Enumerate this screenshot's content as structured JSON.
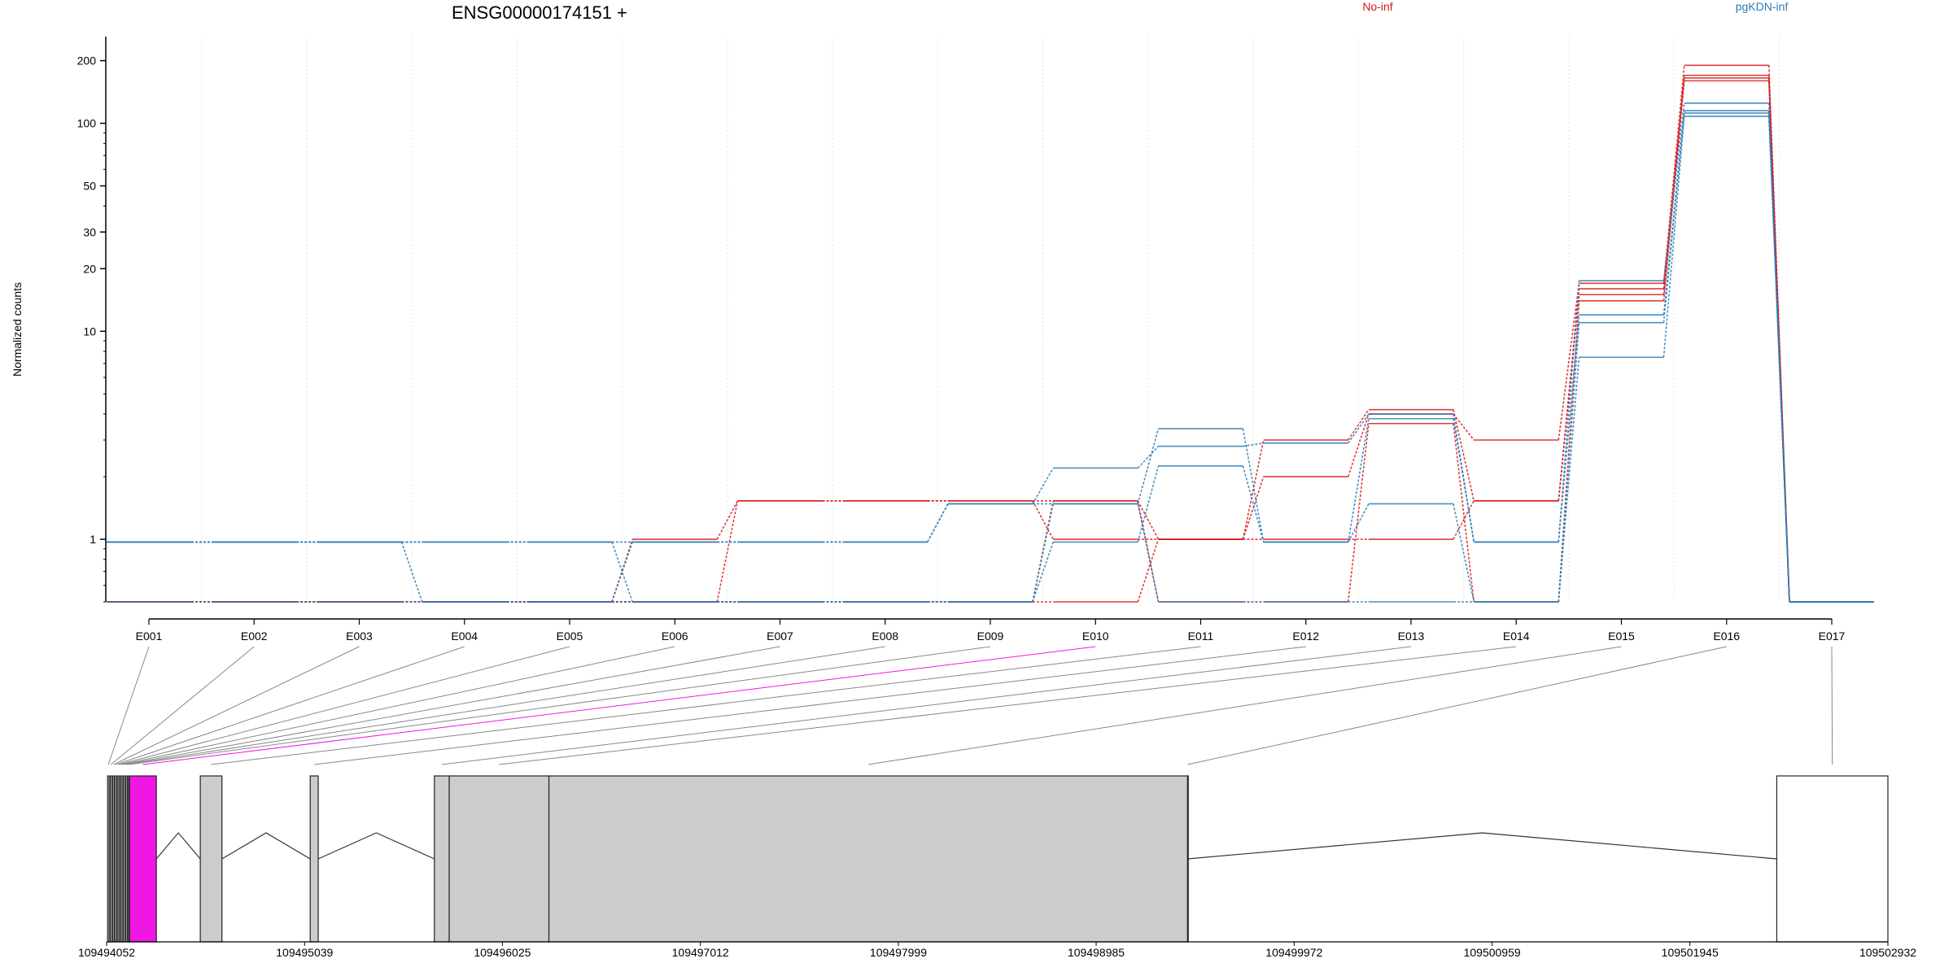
{
  "header": {
    "gene_title": "ENSG00000174151 +"
  },
  "legend": [
    {
      "label": "No-inf",
      "color": "#d7191c"
    },
    {
      "label": "pgKDN-inf",
      "color": "#2c7bb6"
    }
  ],
  "colors": {
    "no_inf": "#d7191c",
    "pgkdn_inf": "#2c7bb6",
    "highlight_exon": "#f016e4",
    "exon_fill": "#cccccc",
    "connector": "#888888"
  },
  "chart_data": [
    {
      "type": "line",
      "title": "ENSG00000174151 +",
      "xlabel": "",
      "ylabel": "Normalized counts",
      "y_scale": "log",
      "ylim": [
        0.5,
        220
      ],
      "y_ticks": [
        1,
        10,
        20,
        30,
        50,
        100,
        200
      ],
      "grid": "vertical dotted",
      "categories": [
        "E001",
        "E002",
        "E003",
        "E004",
        "E005",
        "E006",
        "E007",
        "E008",
        "E009",
        "E010",
        "E011",
        "E012",
        "E013",
        "E014",
        "E015",
        "E016",
        "E017"
      ],
      "series": [
        {
          "group": "No-inf",
          "color": "#d7191c",
          "values": [
            0.5,
            0.5,
            0.5,
            0.5,
            0.5,
            1.0,
            1.53,
            1.53,
            1.53,
            1.53,
            1.0,
            2.0,
            4.0,
            3.0,
            17.0,
            190,
            0.5
          ]
        },
        {
          "group": "No-inf",
          "color": "#d7191c",
          "values": [
            0.5,
            0.5,
            0.5,
            0.5,
            0.5,
            0.5,
            1.53,
            1.53,
            1.53,
            1.0,
            1.0,
            3.0,
            4.2,
            1.53,
            16.0,
            170,
            0.5
          ]
        },
        {
          "group": "No-inf",
          "color": "#d7191c",
          "values": [
            0.5,
            0.5,
            0.5,
            0.5,
            0.5,
            0.5,
            0.5,
            0.5,
            0.5,
            0.5,
            1.0,
            1.0,
            1.0,
            1.53,
            15.0,
            165,
            0.5
          ]
        },
        {
          "group": "No-inf",
          "color": "#d7191c",
          "values": [
            0.5,
            0.5,
            0.5,
            0.5,
            0.5,
            0.5,
            0.5,
            0.5,
            0.5,
            1.53,
            0.5,
            0.5,
            3.6,
            0.5,
            14.0,
            160,
            0.5
          ]
        },
        {
          "group": "pgKDN-inf",
          "color": "#2c7bb6",
          "values": [
            0.97,
            0.97,
            0.97,
            0.5,
            0.5,
            0.97,
            0.97,
            0.97,
            1.48,
            1.48,
            3.4,
            0.97,
            3.8,
            0.97,
            17.5,
            125,
            0.5
          ]
        },
        {
          "group": "pgKDN-inf",
          "color": "#2c7bb6",
          "values": [
            0.97,
            0.97,
            0.97,
            0.97,
            0.97,
            0.97,
            0.97,
            0.97,
            1.48,
            2.2,
            2.8,
            2.9,
            4.0,
            0.97,
            12.0,
            115,
            0.5
          ]
        },
        {
          "group": "pgKDN-inf",
          "color": "#2c7bb6",
          "values": [
            0.97,
            0.97,
            0.97,
            0.97,
            0.97,
            0.5,
            0.5,
            0.5,
            0.5,
            0.97,
            2.25,
            0.97,
            1.48,
            0.5,
            11.0,
            112,
            0.5
          ]
        },
        {
          "group": "pgKDN-inf",
          "color": "#2c7bb6",
          "values": [
            0.5,
            0.5,
            0.5,
            0.5,
            0.5,
            0.5,
            0.5,
            0.5,
            0.5,
            1.48,
            0.5,
            0.5,
            0.5,
            0.5,
            7.5,
            108,
            0.5
          ]
        }
      ]
    },
    {
      "type": "gene-model",
      "xlim": [
        109494052,
        109502932
      ],
      "x_ticks": [
        109494052,
        109495039,
        109496025,
        109497012,
        109497999,
        109498985,
        109499972,
        109500959,
        109501945,
        109502932
      ],
      "exons": [
        {
          "id": "E001",
          "start": 109494057,
          "end": 109494064,
          "fill": "none"
        },
        {
          "id": "E002",
          "start": 109494070,
          "end": 109494077,
          "fill": "none"
        },
        {
          "id": "E003",
          "start": 109494083,
          "end": 109494090,
          "fill": "none"
        },
        {
          "id": "E004",
          "start": 109494096,
          "end": 109494103,
          "fill": "none"
        },
        {
          "id": "E005",
          "start": 109494109,
          "end": 109494116,
          "fill": "none"
        },
        {
          "id": "E006",
          "start": 109494122,
          "end": 109494129,
          "fill": "none"
        },
        {
          "id": "E007",
          "start": 109494135,
          "end": 109494142,
          "fill": "none"
        },
        {
          "id": "E008",
          "start": 109494148,
          "end": 109494155,
          "fill": "none"
        },
        {
          "id": "E009",
          "start": 109494161,
          "end": 109494166,
          "fill": "none"
        },
        {
          "id": "E010",
          "start": 109494166,
          "end": 109494300,
          "fill": "highlight"
        },
        {
          "id": "E011",
          "start": 109494519,
          "end": 109494627,
          "fill": "grey"
        },
        {
          "id": "E012",
          "start": 109495067,
          "end": 109495107,
          "fill": "grey"
        },
        {
          "id": "E013",
          "start": 109495686,
          "end": 109495760,
          "fill": "grey"
        },
        {
          "id": "E014",
          "start": 109495760,
          "end": 109496257,
          "fill": "grey"
        },
        {
          "id": "E015",
          "start": 109496257,
          "end": 109499441,
          "fill": "grey"
        },
        {
          "id": "E016",
          "start": 109499441,
          "end": 109499441,
          "fill": "grey"
        },
        {
          "id": "E017",
          "start": 109502378,
          "end": 109502932,
          "fill": "none"
        }
      ],
      "introns": [
        [
          109494300,
          109494519
        ],
        [
          109494627,
          109495067
        ],
        [
          109495107,
          109495686
        ],
        [
          109499441,
          109502378
        ]
      ]
    }
  ]
}
